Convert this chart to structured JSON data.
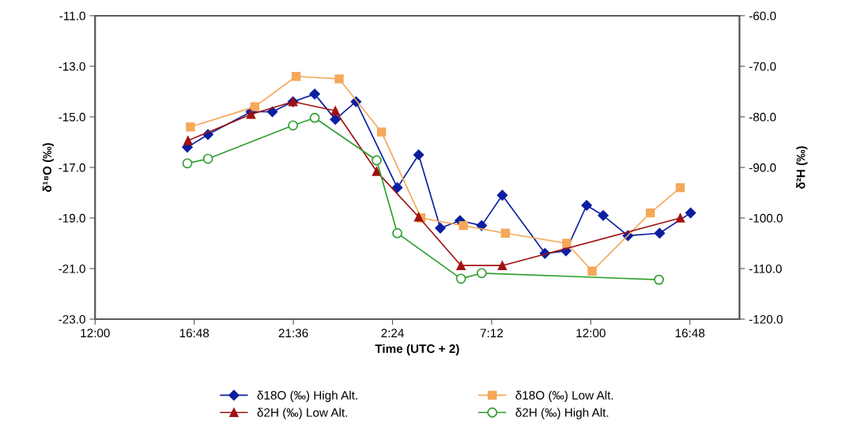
{
  "chart_data": {
    "type": "line",
    "xlabel": "Time (UTC + 2)",
    "ylabel": "δ¹⁸O (‰)",
    "y2label": "δ²H (‰)",
    "xlim": [
      "2000-01-01T12:00",
      "2000-01-02T19:12"
    ],
    "xticks": [
      {
        "value": "2000-01-01T12:00",
        "label": "12:00"
      },
      {
        "value": "2000-01-01T16:48",
        "label": "16:48"
      },
      {
        "value": "2000-01-01T21:36",
        "label": "21:36"
      },
      {
        "value": "2000-01-02T02:24",
        "label": "2:24"
      },
      {
        "value": "2000-01-02T07:12",
        "label": "7:12"
      },
      {
        "value": "2000-01-02T12:00",
        "label": "12:00"
      },
      {
        "value": "2000-01-02T16:48",
        "label": "16:48"
      }
    ],
    "ylim": [
      -23,
      -11
    ],
    "yticks": [
      {
        "value": -23,
        "label": "-23.0"
      },
      {
        "value": -21,
        "label": "-21.0"
      },
      {
        "value": -19,
        "label": "-19.0"
      },
      {
        "value": -17,
        "label": "-17.0"
      },
      {
        "value": -15,
        "label": "-15.0"
      },
      {
        "value": -13,
        "label": "-13.0"
      },
      {
        "value": -11,
        "label": "-11.0"
      }
    ],
    "y2lim": [
      -120,
      -60
    ],
    "y2ticks": [
      {
        "value": -120,
        "label": "-120.0"
      },
      {
        "value": -110,
        "label": "-110.0"
      },
      {
        "value": -100,
        "label": "-100.0"
      },
      {
        "value": -90,
        "label": "-90.0"
      },
      {
        "value": -80,
        "label": "-80.0"
      },
      {
        "value": -70,
        "label": "-70.0"
      },
      {
        "value": -60,
        "label": "-60.0"
      }
    ],
    "grid": false,
    "legend": "bottom",
    "line_style": "solid",
    "series": [
      {
        "name": "δ18O (‰) High Alt.",
        "color": "#0b1fa0",
        "marker": "diamond",
        "axis": "y",
        "x": [
          "2000-01-01T16:28",
          "2000-01-01T17:28",
          "2000-01-01T19:33",
          "2000-01-01T20:35",
          "2000-01-01T21:35",
          "2000-01-01T22:38",
          "2000-01-01T23:38",
          "2000-01-02T00:38",
          "2000-01-02T02:38",
          "2000-01-02T03:40",
          "2000-01-02T04:43",
          "2000-01-02T05:40",
          "2000-01-02T06:43",
          "2000-01-02T07:43",
          "2000-01-02T09:47",
          "2000-01-02T10:48",
          "2000-01-02T11:48",
          "2000-01-02T12:36",
          "2000-01-02T13:48",
          "2000-01-02T15:20",
          "2000-01-02T16:50"
        ],
        "values": [
          -16.2,
          -15.7,
          -14.8,
          -14.8,
          -14.4,
          -14.1,
          -15.1,
          -14.4,
          -17.8,
          -16.5,
          -19.4,
          -19.1,
          -19.3,
          -18.1,
          -20.4,
          -20.3,
          -18.5,
          -18.9,
          -19.7,
          -19.6,
          -18.8
        ]
      },
      {
        "name": "δ18O (‰) Low Alt.",
        "color": "#f5a85a",
        "marker": "square",
        "axis": "y",
        "x": [
          "2000-01-01T16:37",
          "2000-01-01T19:44",
          "2000-01-01T21:44",
          "2000-01-01T23:49",
          "2000-01-02T01:52",
          "2000-01-02T03:47",
          "2000-01-02T05:50",
          "2000-01-02T07:52",
          "2000-01-02T10:50",
          "2000-01-02T12:04",
          "2000-01-02T14:53",
          "2000-01-02T16:20"
        ],
        "values": [
          -15.4,
          -14.6,
          -13.4,
          -13.5,
          -15.6,
          -19.0,
          -19.3,
          -19.6,
          -20.0,
          -21.1,
          -18.8,
          -17.8
        ]
      },
      {
        "name": "δ2H (‰) Low Alt.",
        "color": "#a01212",
        "marker": "triangle",
        "axis": "y2",
        "x": [
          "2000-01-01T16:30",
          "2000-01-01T19:33",
          "2000-01-01T21:35",
          "2000-01-01T23:38",
          "2000-01-02T01:38",
          "2000-01-02T03:40",
          "2000-01-02T05:43",
          "2000-01-02T07:43",
          "2000-01-02T16:20"
        ],
        "values": [
          -84.7,
          -79.5,
          -77.0,
          -78.8,
          -90.8,
          -99.8,
          -109.4,
          -109.4,
          -100.0
        ]
      },
      {
        "name": "δ2H (‰) High Alt.",
        "color": "#2e9e2e",
        "marker": "circle",
        "axis": "y2",
        "x": [
          "2000-01-01T16:28",
          "2000-01-01T17:28",
          "2000-01-01T21:35",
          "2000-01-01T22:38",
          "2000-01-02T01:38",
          "2000-01-02T02:38",
          "2000-01-02T05:43",
          "2000-01-02T06:43",
          "2000-01-02T15:18"
        ],
        "values": [
          -89.2,
          -88.3,
          -81.7,
          -80.2,
          -88.6,
          -103.0,
          -112.0,
          -110.9,
          -112.2
        ]
      }
    ]
  }
}
